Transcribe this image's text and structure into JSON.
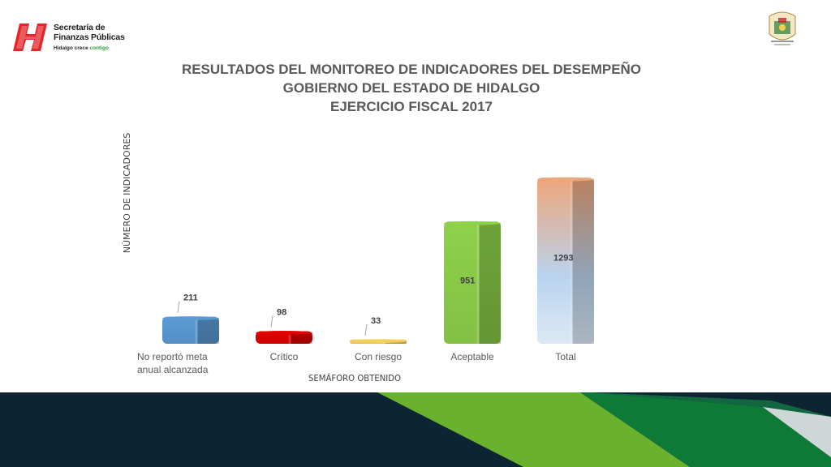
{
  "header": {
    "org_line1": "Secretaría de",
    "org_line2": "Finanzas Públicas",
    "slogan_a": "Hidalgo crece",
    "slogan_b": "contigo"
  },
  "titles": [
    "RESULTADOS DEL MONITOREO DE INDICADORES DEL DESEMPEÑO",
    "GOBIERNO DEL ESTADO DE HIDALGO",
    "EJERCICIO FISCAL 2017"
  ],
  "colors": {
    "brand_red": "#e3262a",
    "brand_green": "#6ab22e",
    "footer_dark": "#0d2433"
  },
  "chart_data": {
    "type": "bar",
    "categories": [
      "No reportó meta anual alcanzada",
      "Crítico",
      "Con riesgo",
      "Aceptable",
      "Total"
    ],
    "category_lines": [
      [
        "No reportó meta",
        "anual alcanzada"
      ],
      [
        "Crítico"
      ],
      [
        "Con riesgo"
      ],
      [
        "Aceptable"
      ],
      [
        "Total"
      ]
    ],
    "values": [
      211,
      98,
      33,
      951,
      1293
    ],
    "colors": [
      "#5b9bd5",
      "#e00000",
      "#f5cf5a",
      "#8ed14a",
      "#e9a77c"
    ],
    "xlabel": "SEMÁFORO OBTENIDO",
    "ylabel": "NÚMERO DE INDICADORES",
    "ylim": [
      0,
      1300
    ],
    "grid": false,
    "legend": "none"
  }
}
